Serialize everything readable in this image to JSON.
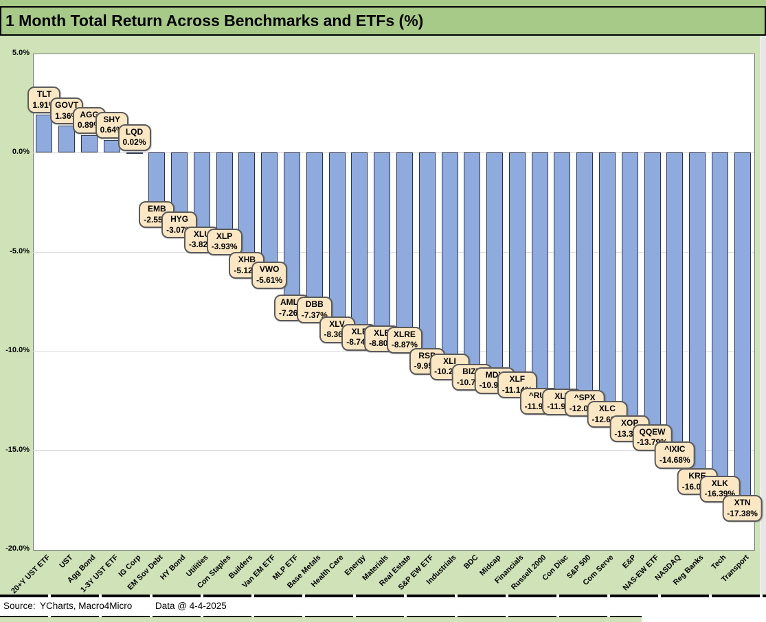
{
  "title": "1 Month Total Return Across Benchmarks and ETFs (%)",
  "footer": {
    "source_label": "Source:",
    "source_value": "YCharts, Macro4Micro",
    "data_date": "Data @ 4-4-2025"
  },
  "colors": {
    "title_bar_bg": "#a7ca89",
    "chart_bg": "#cfe2b8",
    "bar_fill": "#8faadc",
    "bar_border": "#2b3550",
    "callout_bg": "#fbe7c4",
    "callout_border": "#5a5a5a",
    "gridline": "#d9d9d9",
    "plot_border": "#7d7d7d"
  },
  "chart_data": {
    "type": "bar",
    "title": "1 Month Total Return Across Benchmarks and ETFs (%)",
    "xlabel": "",
    "ylabel": "",
    "ylim": [
      -20,
      5
    ],
    "grid": "horizontal",
    "legend": "none",
    "yticks": [
      {
        "value": 5,
        "label": "5.0%"
      },
      {
        "value": 0,
        "label": "0.0%"
      },
      {
        "value": -5,
        "label": "-5.0%"
      },
      {
        "value": -10,
        "label": "-10.0%"
      },
      {
        "value": -15,
        "label": "-15.0%"
      },
      {
        "value": -20,
        "label": "-20.0%"
      }
    ],
    "categories": [
      "20+Y UST ETF",
      "UST",
      "Agg Bond",
      "1-3Y UST ETF",
      "IG Corp",
      "EM Sov Debt",
      "HY Bond",
      "Utilities",
      "Con Staples",
      "Builders",
      "Van EM ETF",
      "MLP ETF",
      "Base Metals",
      "Health Care",
      "Energy",
      "Materials",
      "Real Estate",
      "S&P EW ETF",
      "Industrials",
      "BDC",
      "Midcap",
      "Financials",
      "Russell 2000",
      "Con Disc",
      "S&P 500",
      "Com Serve",
      "E&P",
      "NAS-EW ETF",
      "NASDAQ",
      "Reg Banks",
      "Tech",
      "Transport"
    ],
    "series": [
      {
        "name": "1 Month Total Return (%)",
        "values": [
          1.91,
          1.36,
          0.89,
          0.64,
          0.02,
          -2.55,
          -3.07,
          -3.82,
          -3.93,
          -5.12,
          -5.61,
          -7.26,
          -7.37,
          -8.36,
          -8.74,
          -8.8,
          -8.87,
          -9.95,
          -10.23,
          -10.76,
          -10.92,
          -11.14,
          -11.97,
          -11.99,
          -12.08,
          -12.63,
          -13.36,
          -13.79,
          -14.68,
          -16.02,
          -16.39,
          -17.38
        ]
      }
    ],
    "bars": [
      {
        "category": "20+Y UST ETF",
        "ticker": "TLT",
        "value": 1.91,
        "label": "1.91%"
      },
      {
        "category": "UST",
        "ticker": "GOVT",
        "value": 1.36,
        "label": "1.36%"
      },
      {
        "category": "Agg Bond",
        "ticker": "AGG",
        "value": 0.89,
        "label": "0.89%"
      },
      {
        "category": "1-3Y UST ETF",
        "ticker": "SHY",
        "value": 0.64,
        "label": "0.64%"
      },
      {
        "category": "IG Corp",
        "ticker": "LQD",
        "value": 0.02,
        "label": "0.02%"
      },
      {
        "category": "EM Sov Debt",
        "ticker": "EMB",
        "value": -2.55,
        "label": "-2.55%"
      },
      {
        "category": "HY Bond",
        "ticker": "HYG",
        "value": -3.07,
        "label": "-3.07%"
      },
      {
        "category": "Utilities",
        "ticker": "XLU",
        "value": -3.82,
        "label": "-3.82%"
      },
      {
        "category": "Con Staples",
        "ticker": "XLP",
        "value": -3.93,
        "label": "-3.93%"
      },
      {
        "category": "Builders",
        "ticker": "XHB",
        "value": -5.12,
        "label": "-5.12%"
      },
      {
        "category": "Van EM ETF",
        "ticker": "VWO",
        "value": -5.61,
        "label": "-5.61%"
      },
      {
        "category": "MLP ETF",
        "ticker": "AMLP",
        "value": -7.26,
        "label": "-7.26%"
      },
      {
        "category": "Base Metals",
        "ticker": "DBB",
        "value": -7.37,
        "label": "-7.37%"
      },
      {
        "category": "Health Care",
        "ticker": "XLV",
        "value": -8.36,
        "label": "-8.36%"
      },
      {
        "category": "Energy",
        "ticker": "XLE",
        "value": -8.74,
        "label": "-8.74%"
      },
      {
        "category": "Materials",
        "ticker": "XLB",
        "value": -8.8,
        "label": "-8.80%"
      },
      {
        "category": "Real Estate",
        "ticker": "XLRE",
        "value": -8.87,
        "label": "-8.87%"
      },
      {
        "category": "S&P EW ETF",
        "ticker": "RSP",
        "value": -9.95,
        "label": "-9.95%"
      },
      {
        "category": "Industrials",
        "ticker": "XLI",
        "value": -10.23,
        "label": "-10.23%"
      },
      {
        "category": "BDC",
        "ticker": "BIZD",
        "value": -10.76,
        "label": "-10.76%"
      },
      {
        "category": "Midcap",
        "ticker": "MDY",
        "value": -10.92,
        "label": "-10.92%"
      },
      {
        "category": "Financials",
        "ticker": "XLF",
        "value": -11.14,
        "label": "-11.14%"
      },
      {
        "category": "Russell 2000",
        "ticker": "^RUT",
        "value": -11.97,
        "label": "-11.97%"
      },
      {
        "category": "Con Disc",
        "ticker": "XLY",
        "value": -11.99,
        "label": "-11.99%"
      },
      {
        "category": "S&P 500",
        "ticker": "^SPX",
        "value": -12.08,
        "label": "-12.08%"
      },
      {
        "category": "Com Serve",
        "ticker": "XLC",
        "value": -12.63,
        "label": "-12.63%"
      },
      {
        "category": "E&P",
        "ticker": "XOP",
        "value": -13.36,
        "label": "-13.36%"
      },
      {
        "category": "NAS-EW ETF",
        "ticker": "QQEW",
        "value": -13.79,
        "label": "-13.79%"
      },
      {
        "category": "NASDAQ",
        "ticker": "^IXIC",
        "value": -14.68,
        "label": "-14.68%"
      },
      {
        "category": "Reg Banks",
        "ticker": "KRE",
        "value": -16.02,
        "label": "-16.02%"
      },
      {
        "category": "Tech",
        "ticker": "XLK",
        "value": -16.39,
        "label": "-16.39%"
      },
      {
        "category": "Transport",
        "ticker": "XTN",
        "value": -17.38,
        "label": "-17.38%"
      }
    ]
  }
}
